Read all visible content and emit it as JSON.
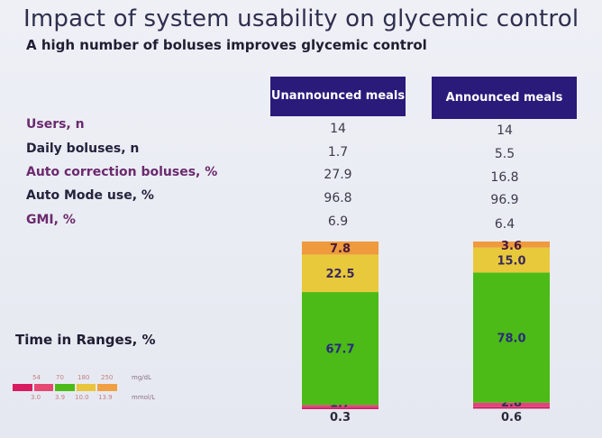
{
  "title": "Impact of system usability on glycemic control",
  "subtitle": "A high number of boluses improves glycemic control",
  "columns": [
    "Unannounced meals",
    "Announced meals"
  ],
  "rows": [
    {
      "label": "Users, n",
      "values": [
        "14",
        "14"
      ],
      "style": "purple"
    },
    {
      "label": "Daily boluses, n",
      "values": [
        "1.7",
        "5.5"
      ],
      "style": "dark"
    },
    {
      "label": "Auto correction boluses, %",
      "values": [
        "27.9",
        "16.8"
      ],
      "style": "purple"
    },
    {
      "label": "Auto Mode use, %",
      "values": [
        "96.8",
        "96.9"
      ],
      "style": "dark"
    },
    {
      "label": "GMI, %",
      "values": [
        "6.9",
        "6.4"
      ],
      "style": "purple"
    }
  ],
  "tir_label": "Time in Ranges, %",
  "legend": {
    "mgdl": [
      "54",
      "70",
      "180",
      "250"
    ],
    "mgdl_unit": "mg/dL",
    "mmol": [
      "3.0",
      "3.9",
      "10.0",
      "13.9"
    ],
    "mmol_unit": "mmol/L",
    "colors": [
      "#d81b60",
      "#e54872",
      "#4cbb17",
      "#e8c53a",
      "#f0a040"
    ]
  },
  "chart_data": {
    "type": "bar",
    "stacked": true,
    "categories": [
      "Unannounced meals",
      "Announced meals"
    ],
    "series": [
      {
        "range": "<54",
        "color": "#c2185b",
        "values": [
          0.3,
          0.6
        ]
      },
      {
        "range": "54-70",
        "color": "#e0457b",
        "values": [
          1.7,
          2.8
        ]
      },
      {
        "range": "70-180",
        "color": "#4cbb17",
        "values": [
          67.7,
          78.0
        ]
      },
      {
        "range": "180-250",
        "color": "#e9c93c",
        "values": [
          22.5,
          15.0
        ]
      },
      {
        "range": ">250",
        "color": "#ee9a3d",
        "values": [
          7.8,
          3.6
        ]
      }
    ],
    "ylim": [
      0,
      100
    ]
  }
}
